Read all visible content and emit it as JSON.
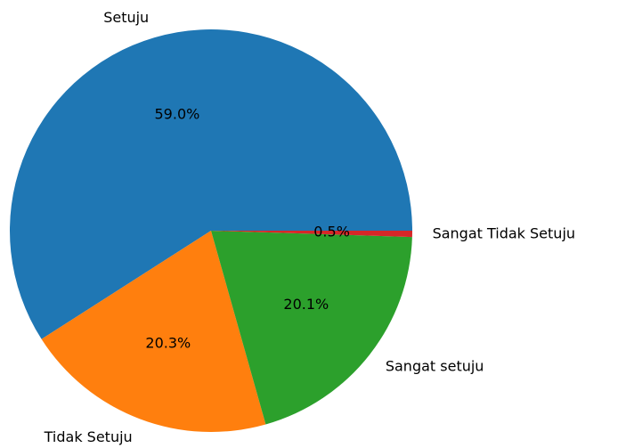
{
  "chart_data": {
    "type": "pie",
    "categories": [
      "Setuju",
      "Tidak Setuju",
      "Sangat setuju",
      "Sangat Tidak Setuju"
    ],
    "values": [
      59.0,
      20.3,
      20.1,
      0.5
    ],
    "value_labels": [
      "59.0%",
      "20.3%",
      "20.1%",
      "0.5%"
    ],
    "colors": [
      "#1f77b4",
      "#ff7f0e",
      "#2ca02c",
      "#d62728"
    ]
  }
}
